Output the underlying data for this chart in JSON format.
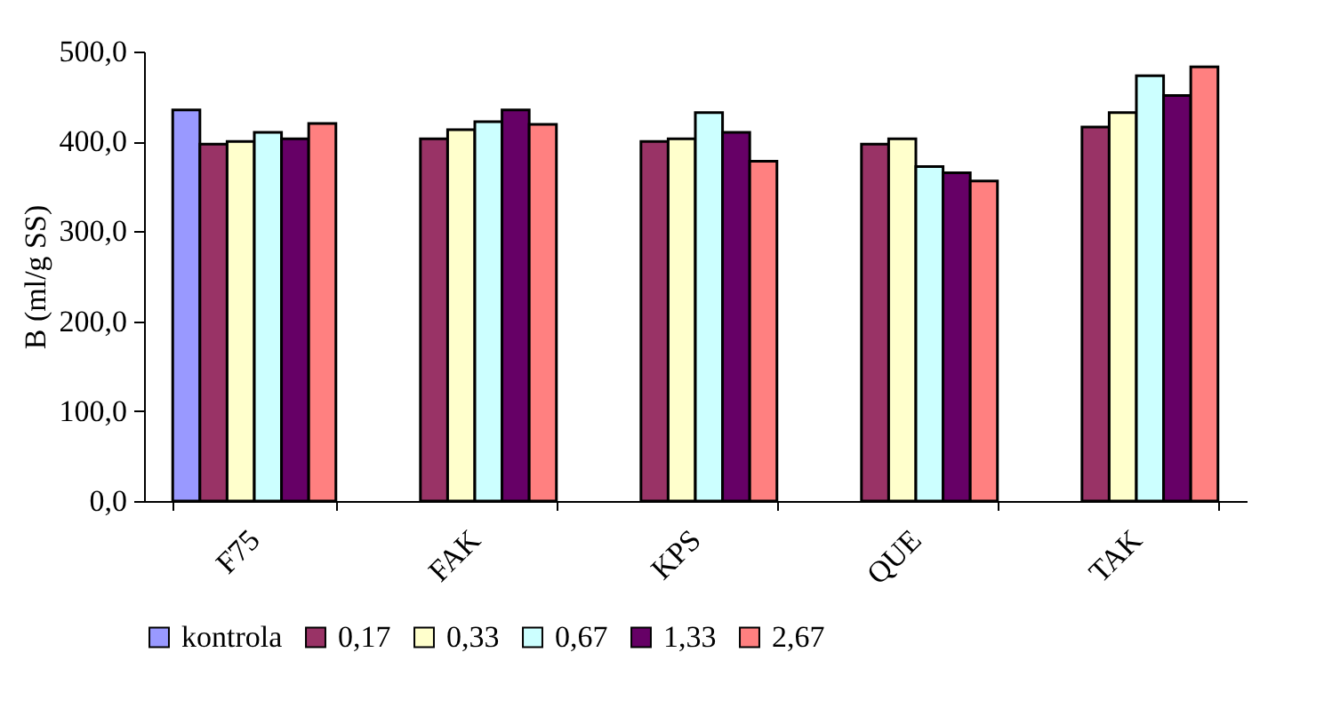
{
  "chart_data": {
    "type": "bar",
    "ylabel": "B (ml/g SS)",
    "categories": [
      "F75",
      "FAK",
      "KPS",
      "QUE",
      "TAK"
    ],
    "series": [
      {
        "name": "kontrola",
        "color": "#9999ff",
        "values": [
          435,
          null,
          null,
          null,
          null
        ]
      },
      {
        "name": "0,17",
        "color": "#993366",
        "values": [
          397,
          403,
          400,
          397,
          416
        ]
      },
      {
        "name": "0,33",
        "color": "#ffffcc",
        "values": [
          400,
          413,
          403,
          403,
          432
        ]
      },
      {
        "name": "0,67",
        "color": "#ccffff",
        "values": [
          410,
          422,
          432,
          372,
          473
        ]
      },
      {
        "name": "1,33",
        "color": "#660066",
        "values": [
          403,
          435,
          410,
          365,
          451
        ]
      },
      {
        "name": "2,67",
        "color": "#ff8080",
        "values": [
          420,
          419,
          378,
          356,
          483
        ]
      }
    ],
    "ylim": [
      0,
      500
    ],
    "yticks": [
      {
        "value": 0,
        "label": "0,0"
      },
      {
        "value": 100,
        "label": "100,0"
      },
      {
        "value": 200,
        "label": "200,0"
      },
      {
        "value": 300,
        "label": "300,0"
      },
      {
        "value": 400,
        "label": "400,0"
      },
      {
        "value": 500,
        "label": "500,0"
      }
    ],
    "grid": false,
    "legend": "bottom"
  }
}
